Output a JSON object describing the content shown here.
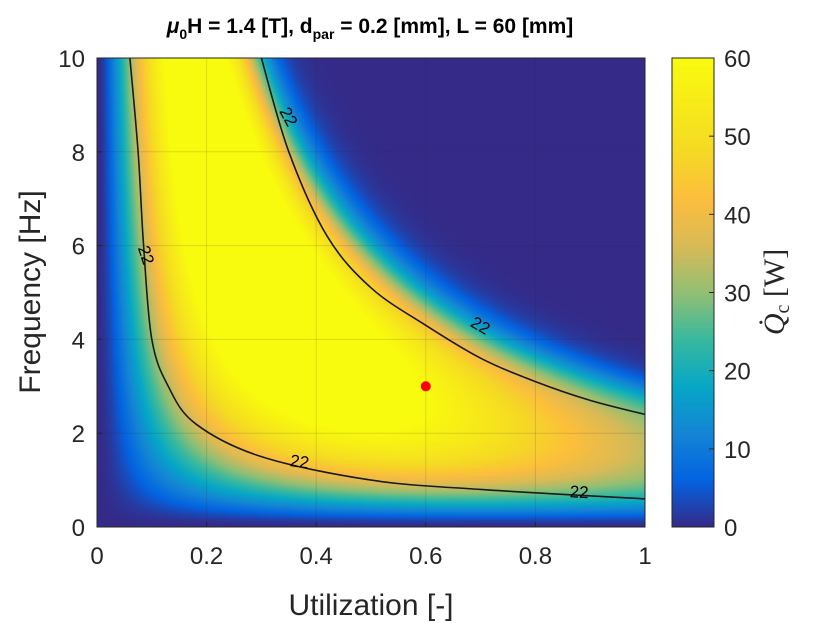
{
  "chart_data": {
    "type": "heatmap",
    "title": "μ0H = 1.4 [T], dpar = 0.2 [mm], L = 60 [mm]",
    "title_parts": {
      "mu": "μ",
      "mu_sub": "0",
      "h_part": "H = 1.4 [T], d",
      "d_sub": "par",
      "rest": " = 0.2 [mm], L = 60 [mm]"
    },
    "xlabel": "Utilization [-]",
    "ylabel": "Frequency [Hz]",
    "xlim": [
      0,
      1
    ],
    "ylim": [
      0,
      10
    ],
    "x_ticks": [
      "0",
      "0.2",
      "0.4",
      "0.6",
      "0.8",
      "1"
    ],
    "y_ticks": [
      "0",
      "2",
      "4",
      "6",
      "8",
      "10"
    ],
    "grid": true,
    "colorbar": {
      "label_symbol": "Q̇",
      "label_sub": "c",
      "label_unit": " [W]",
      "range": [
        0,
        60
      ],
      "ticks": [
        "0",
        "10",
        "20",
        "30",
        "40",
        "50",
        "60"
      ],
      "colormap": "parula"
    },
    "contour": {
      "level": 22,
      "label": "22",
      "inner_line": [
        [
          0.06,
          10
        ],
        [
          0.075,
          8
        ],
        [
          0.085,
          6
        ],
        [
          0.1,
          4
        ],
        [
          0.13,
          3
        ],
        [
          0.18,
          2.2
        ],
        [
          0.3,
          1.5
        ],
        [
          0.5,
          1.0
        ],
        [
          0.7,
          0.8
        ],
        [
          1.0,
          0.6
        ]
      ],
      "outer_line": [
        [
          0.3,
          10
        ],
        [
          0.35,
          8
        ],
        [
          0.42,
          6.2
        ],
        [
          0.5,
          5.1
        ],
        [
          0.6,
          4.3
        ],
        [
          0.7,
          3.6
        ],
        [
          0.8,
          3.1
        ],
        [
          0.9,
          2.7
        ],
        [
          1.0,
          2.4
        ]
      ],
      "label_positions": [
        [
          0.35,
          8.75
        ],
        [
          0.09,
          5.8
        ],
        [
          0.7,
          4.3
        ],
        [
          0.37,
          1.4
        ],
        [
          0.88,
          0.75
        ]
      ]
    },
    "peak_value_estimate": 60,
    "marker": {
      "x": 0.6,
      "y": 3.0,
      "color": "#ff0000"
    }
  }
}
